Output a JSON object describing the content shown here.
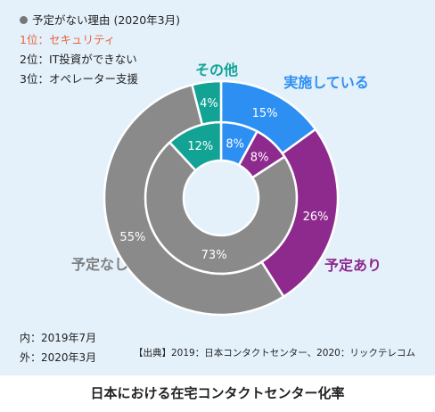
{
  "legend": {
    "heading": "予定がない理由 (2020年3月)",
    "rank1": "1位：セキュリティ",
    "rank2": "2位：IT投資ができない",
    "rank3": "3位：オペレーター支援",
    "rank1_color": "#e8643c"
  },
  "chart_data": {
    "type": "donut",
    "series": [
      {
        "name": "内：2019年7月",
        "ring": "inner",
        "slices": [
          {
            "label": "実施している",
            "value": 8,
            "color": "#2e8ff2"
          },
          {
            "label": "予定あり",
            "value": 8,
            "color": "#8e2a8e"
          },
          {
            "label": "予定なし",
            "value": 73,
            "color": "#8a8a8a"
          },
          {
            "label": "その他",
            "value": 12,
            "color": "#12a394"
          }
        ]
      },
      {
        "name": "外：2020年3月",
        "ring": "outer",
        "slices": [
          {
            "label": "実施している",
            "value": 15,
            "color": "#2e8ff2"
          },
          {
            "label": "予定あり",
            "value": 26,
            "color": "#8e2a8e"
          },
          {
            "label": "予定なし",
            "value": 55,
            "color": "#8a8a8a"
          },
          {
            "label": "その他",
            "value": 4,
            "color": "#12a394"
          }
        ]
      }
    ],
    "category_labels": [
      "実施している",
      "予定あり",
      "予定なし",
      "その他"
    ],
    "category_colors": [
      "#2e8ff2",
      "#8e2a8e",
      "#808080",
      "#12a394"
    ]
  },
  "notes": {
    "inner": "内：2019年7月",
    "outer": "外：2020年3月"
  },
  "source": "【出典】2019：日本コンタクトセンター、2020：リックテレコム",
  "caption": "日本における在宅コンタクトセンター化率"
}
